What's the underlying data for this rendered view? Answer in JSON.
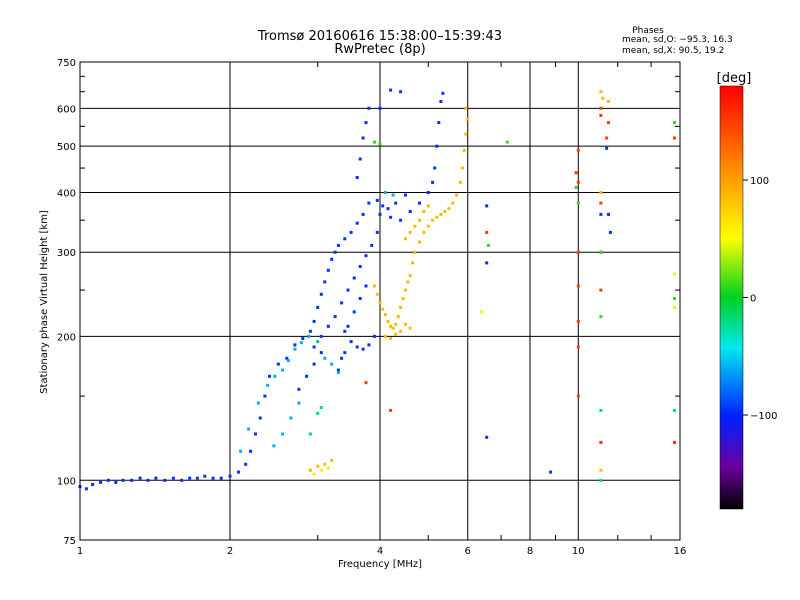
{
  "chart_data": {
    "type": "scatter",
    "title": "Tromsø 20160616 15:38:00–15:39:43",
    "subtitle": "RwPretec (8p)",
    "xlabel": "Frequency [MHz]",
    "ylabel": "Stationary phase Virtual Height [km]",
    "x_scale": "log",
    "y_scale": "log",
    "xlim": [
      1,
      16
    ],
    "ylim": [
      75,
      750
    ],
    "x_ticks": [
      1,
      2,
      4,
      6,
      8,
      10,
      16
    ],
    "x_tick_labels": [
      "1",
      "2",
      "4",
      "6",
      "8",
      "10",
      "16"
    ],
    "y_ticks": [
      75,
      100,
      200,
      300,
      400,
      500,
      600,
      750
    ],
    "y_tick_labels": [
      "75",
      "100",
      "200",
      "300",
      "400",
      "500",
      "600",
      "750"
    ],
    "grid": true,
    "stats": {
      "heading": "Phases",
      "line_o": "mean, sd,O: −95.3, 16.3",
      "line_x": "mean, sd,X:  90.5, 19.2"
    },
    "colorbar": {
      "label": "[deg]",
      "min": -180,
      "max": 180,
      "ticks": [
        100,
        0,
        -100
      ],
      "tick_labels": [
        "100",
        "0",
        "−100"
      ]
    },
    "series": [
      {
        "phase_deg": -95,
        "points": [
          [
            1.0,
            97
          ],
          [
            1.03,
            96
          ],
          [
            1.06,
            98
          ],
          [
            1.1,
            99
          ],
          [
            1.14,
            100
          ],
          [
            1.18,
            99
          ],
          [
            1.22,
            100
          ],
          [
            1.27,
            100
          ],
          [
            1.32,
            101
          ],
          [
            1.37,
            100
          ],
          [
            1.42,
            101
          ],
          [
            1.48,
            100
          ],
          [
            1.54,
            101
          ],
          [
            1.6,
            100
          ],
          [
            1.66,
            101
          ],
          [
            1.72,
            101
          ],
          [
            1.78,
            102
          ],
          [
            1.85,
            101
          ],
          [
            1.92,
            101
          ],
          [
            2.0,
            102
          ],
          [
            2.08,
            104
          ],
          [
            2.15,
            108
          ],
          [
            2.2,
            115
          ],
          [
            2.25,
            125
          ],
          [
            2.3,
            135
          ],
          [
            2.35,
            150
          ],
          [
            2.4,
            165
          ],
          [
            2.5,
            175
          ],
          [
            2.6,
            180
          ],
          [
            2.7,
            192
          ],
          [
            2.8,
            198
          ],
          [
            2.9,
            205
          ],
          [
            2.95,
            215
          ],
          [
            3.0,
            230
          ],
          [
            3.05,
            245
          ],
          [
            3.1,
            260
          ],
          [
            3.15,
            275
          ],
          [
            3.2,
            290
          ],
          [
            3.25,
            300
          ],
          [
            3.3,
            310
          ],
          [
            3.4,
            320
          ],
          [
            3.5,
            330
          ],
          [
            3.6,
            345
          ],
          [
            3.7,
            360
          ],
          [
            3.8,
            380
          ],
          [
            4.0,
            360
          ],
          [
            4.2,
            355
          ],
          [
            4.4,
            350
          ],
          [
            4.6,
            365
          ],
          [
            4.8,
            380
          ],
          [
            5.0,
            400
          ],
          [
            5.1,
            420
          ],
          [
            5.15,
            450
          ],
          [
            5.2,
            500
          ],
          [
            5.25,
            560
          ],
          [
            5.3,
            620
          ],
          [
            5.35,
            645
          ],
          [
            3.4,
            205
          ],
          [
            3.5,
            195
          ],
          [
            3.6,
            190
          ],
          [
            3.7,
            188
          ],
          [
            3.8,
            192
          ],
          [
            3.9,
            200
          ],
          [
            2.95,
            190
          ],
          [
            3.05,
            200
          ],
          [
            3.15,
            210
          ],
          [
            3.25,
            220
          ],
          [
            3.35,
            235
          ],
          [
            3.45,
            250
          ],
          [
            3.55,
            265
          ],
          [
            3.65,
            280
          ],
          [
            3.75,
            295
          ],
          [
            3.85,
            310
          ],
          [
            3.95,
            330
          ],
          [
            3.6,
            430
          ],
          [
            3.65,
            470
          ],
          [
            3.7,
            520
          ],
          [
            3.75,
            560
          ],
          [
            3.8,
            600
          ],
          [
            4.0,
            600
          ],
          [
            4.2,
            655
          ],
          [
            4.4,
            650
          ],
          [
            3.95,
            385
          ],
          [
            4.05,
            375
          ],
          [
            4.15,
            370
          ],
          [
            4.3,
            380
          ],
          [
            4.5,
            395
          ],
          [
            3.3,
            170
          ],
          [
            3.35,
            180
          ],
          [
            3.4,
            185
          ],
          [
            2.75,
            155
          ],
          [
            2.85,
            165
          ],
          [
            2.95,
            175
          ],
          [
            3.05,
            185
          ],
          [
            3.45,
            210
          ],
          [
            3.55,
            225
          ],
          [
            3.65,
            240
          ],
          [
            3.75,
            255
          ],
          [
            6.55,
            375
          ],
          [
            6.55,
            285
          ],
          [
            6.55,
            123
          ],
          [
            8.8,
            104
          ],
          [
            11.1,
            360
          ],
          [
            11.1,
            300
          ],
          [
            11.1,
            120
          ],
          [
            11.4,
            495
          ],
          [
            11.5,
            360
          ],
          [
            11.6,
            330
          ],
          [
            15.6,
            120
          ]
        ]
      },
      {
        "phase_deg": -60,
        "points": [
          [
            2.1,
            115
          ],
          [
            2.18,
            128
          ],
          [
            2.28,
            145
          ],
          [
            2.38,
            158
          ],
          [
            2.46,
            165
          ],
          [
            2.55,
            170
          ],
          [
            2.62,
            178
          ],
          [
            2.7,
            188
          ],
          [
            2.78,
            194
          ],
          [
            2.88,
            200
          ],
          [
            3.0,
            195
          ],
          [
            3.1,
            180
          ],
          [
            3.2,
            175
          ],
          [
            3.3,
            168
          ],
          [
            4.1,
            400
          ],
          [
            4.25,
            395
          ],
          [
            2.45,
            118
          ],
          [
            2.55,
            125
          ],
          [
            2.65,
            135
          ],
          [
            2.75,
            145
          ]
        ]
      },
      {
        "phase_deg": -20,
        "points": [
          [
            2.9,
            125
          ],
          [
            3.0,
            138
          ],
          [
            3.05,
            142
          ],
          [
            11.1,
            140
          ],
          [
            15.6,
            140
          ],
          [
            11.1,
            100
          ]
        ]
      },
      {
        "phase_deg": 85,
        "points": [
          [
            3.9,
            255
          ],
          [
            3.95,
            245
          ],
          [
            4.0,
            235
          ],
          [
            4.05,
            228
          ],
          [
            4.1,
            222
          ],
          [
            4.15,
            215
          ],
          [
            4.2,
            210
          ],
          [
            4.25,
            208
          ],
          [
            4.3,
            212
          ],
          [
            4.35,
            220
          ],
          [
            4.4,
            230
          ],
          [
            4.45,
            240
          ],
          [
            4.5,
            250
          ],
          [
            4.55,
            260
          ],
          [
            4.6,
            268
          ],
          [
            4.65,
            285
          ],
          [
            4.7,
            300
          ],
          [
            4.8,
            315
          ],
          [
            4.9,
            330
          ],
          [
            5.0,
            340
          ],
          [
            5.1,
            350
          ],
          [
            5.2,
            355
          ],
          [
            5.3,
            360
          ],
          [
            5.4,
            365
          ],
          [
            5.5,
            370
          ],
          [
            5.6,
            380
          ],
          [
            5.7,
            395
          ],
          [
            5.8,
            420
          ],
          [
            5.85,
            450
          ],
          [
            5.9,
            490
          ],
          [
            5.95,
            530
          ],
          [
            6.0,
            570
          ],
          [
            5.95,
            600
          ],
          [
            4.1,
            200
          ],
          [
            4.2,
            198
          ],
          [
            4.3,
            202
          ],
          [
            4.4,
            205
          ],
          [
            4.5,
            212
          ],
          [
            4.6,
            208
          ],
          [
            4.5,
            320
          ],
          [
            4.6,
            330
          ],
          [
            4.7,
            340
          ],
          [
            4.8,
            350
          ],
          [
            4.9,
            365
          ],
          [
            5.0,
            375
          ],
          [
            2.9,
            105
          ],
          [
            3.0,
            107
          ],
          [
            3.1,
            108
          ],
          [
            3.2,
            110
          ],
          [
            11.1,
            105
          ],
          [
            11.1,
            400
          ],
          [
            11.2,
            630
          ],
          [
            11.1,
            650
          ],
          [
            11.5,
            620
          ]
        ]
      },
      {
        "phase_deg": 60,
        "points": [
          [
            2.95,
            103
          ],
          [
            3.05,
            105
          ],
          [
            3.15,
            106
          ],
          [
            6.4,
            225
          ],
          [
            15.6,
            270
          ],
          [
            15.6,
            230
          ]
        ]
      },
      {
        "phase_deg": 150,
        "points": [
          [
            3.75,
            160
          ],
          [
            4.2,
            140
          ],
          [
            10.0,
            490
          ],
          [
            10.0,
            420
          ],
          [
            10.0,
            300
          ],
          [
            10.0,
            255
          ],
          [
            10.0,
            215
          ],
          [
            10.0,
            190
          ],
          [
            10.0,
            150
          ],
          [
            11.1,
            600
          ],
          [
            11.1,
            580
          ],
          [
            11.1,
            380
          ],
          [
            11.1,
            250
          ],
          [
            11.1,
            120
          ],
          [
            11.5,
            560
          ],
          [
            11.4,
            520
          ],
          [
            15.6,
            520
          ],
          [
            15.6,
            120
          ],
          [
            6.55,
            330
          ],
          [
            9.9,
            440
          ]
        ]
      },
      {
        "phase_deg": 10,
        "points": [
          [
            7.2,
            510
          ],
          [
            9.9,
            410
          ],
          [
            10.0,
            380
          ],
          [
            11.1,
            300
          ],
          [
            11.1,
            220
          ],
          [
            15.6,
            560
          ],
          [
            15.6,
            240
          ],
          [
            6.6,
            310
          ],
          [
            4.0,
            505
          ],
          [
            3.9,
            510
          ]
        ]
      }
    ]
  }
}
